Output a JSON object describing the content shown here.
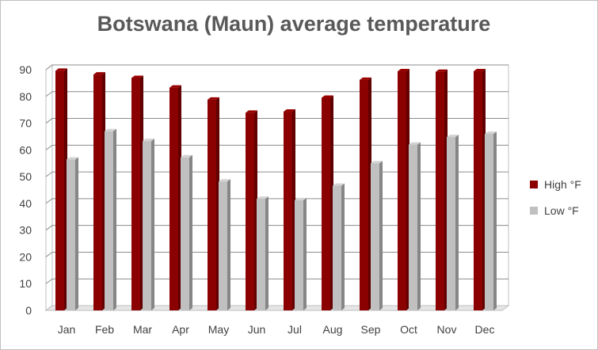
{
  "chart_data": {
    "type": "bar",
    "title": "Botswana (Maun) average temperature",
    "categories": [
      "Jan",
      "Feb",
      "Mar",
      "Apr",
      "May",
      "Jun",
      "Jul",
      "Aug",
      "Sep",
      "Oct",
      "Nov",
      "Dec"
    ],
    "series": [
      {
        "name": "High °F",
        "color": "#8b0000",
        "values": [
          89.6,
          88.2,
          86.9,
          83.3,
          78.8,
          73.9,
          74.3,
          79.5,
          86.2,
          89.4,
          89.2,
          89.4
        ]
      },
      {
        "name": "Low °F",
        "color": "#c0c0c0",
        "values": [
          56.4,
          67.0,
          63.3,
          57.2,
          48.2,
          41.7,
          41.2,
          46.6,
          55.0,
          62.0,
          64.8,
          66.0
        ]
      }
    ],
    "ylim": [
      0,
      90
    ],
    "yticks": [
      0,
      10,
      20,
      30,
      40,
      50,
      60,
      70,
      80,
      90
    ],
    "grid": true,
    "legend_position": "right",
    "three_d": true
  }
}
